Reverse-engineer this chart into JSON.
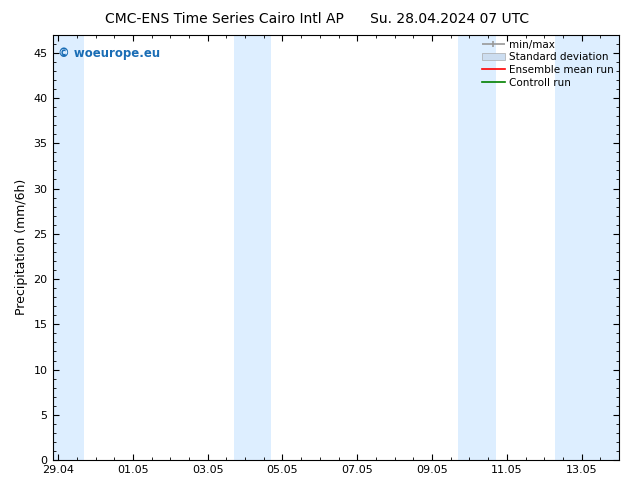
{
  "title_left": "CMC-ENS Time Series Cairo Intl AP",
  "title_right": "Su. 28.04.2024 07 UTC",
  "ylabel": "Precipitation (mm/6h)",
  "ylim": [
    0,
    47
  ],
  "yticks": [
    0,
    5,
    10,
    15,
    20,
    25,
    30,
    35,
    40,
    45
  ],
  "xtick_labels": [
    "29.04",
    "01.05",
    "03.05",
    "05.05",
    "07.05",
    "09.05",
    "11.05",
    "13.05"
  ],
  "xtick_positions": [
    0,
    2,
    4,
    6,
    8,
    10,
    12,
    14
  ],
  "xlim": [
    -0.15,
    15.0
  ],
  "background_color": "#ffffff",
  "plot_bg_color": "#ffffff",
  "shaded_bands": [
    {
      "x_start": -0.15,
      "x_end": 0.7,
      "color": "#ddeeff"
    },
    {
      "x_start": 4.7,
      "x_end": 5.7,
      "color": "#ddeeff"
    },
    {
      "x_start": 10.7,
      "x_end": 11.7,
      "color": "#ddeeff"
    },
    {
      "x_start": 13.3,
      "x_end": 15.0,
      "color": "#ddeeff"
    }
  ],
  "legend_fontsize": 7.5,
  "watermark": "© woeurope.eu",
  "watermark_color": "#1a6db5",
  "title_fontsize": 10,
  "axis_fontsize": 9,
  "tick_fontsize": 8,
  "minmax_color": "#999999",
  "std_color": "#ccddf0",
  "ensemble_color": "#ff0000",
  "control_color": "#008000"
}
